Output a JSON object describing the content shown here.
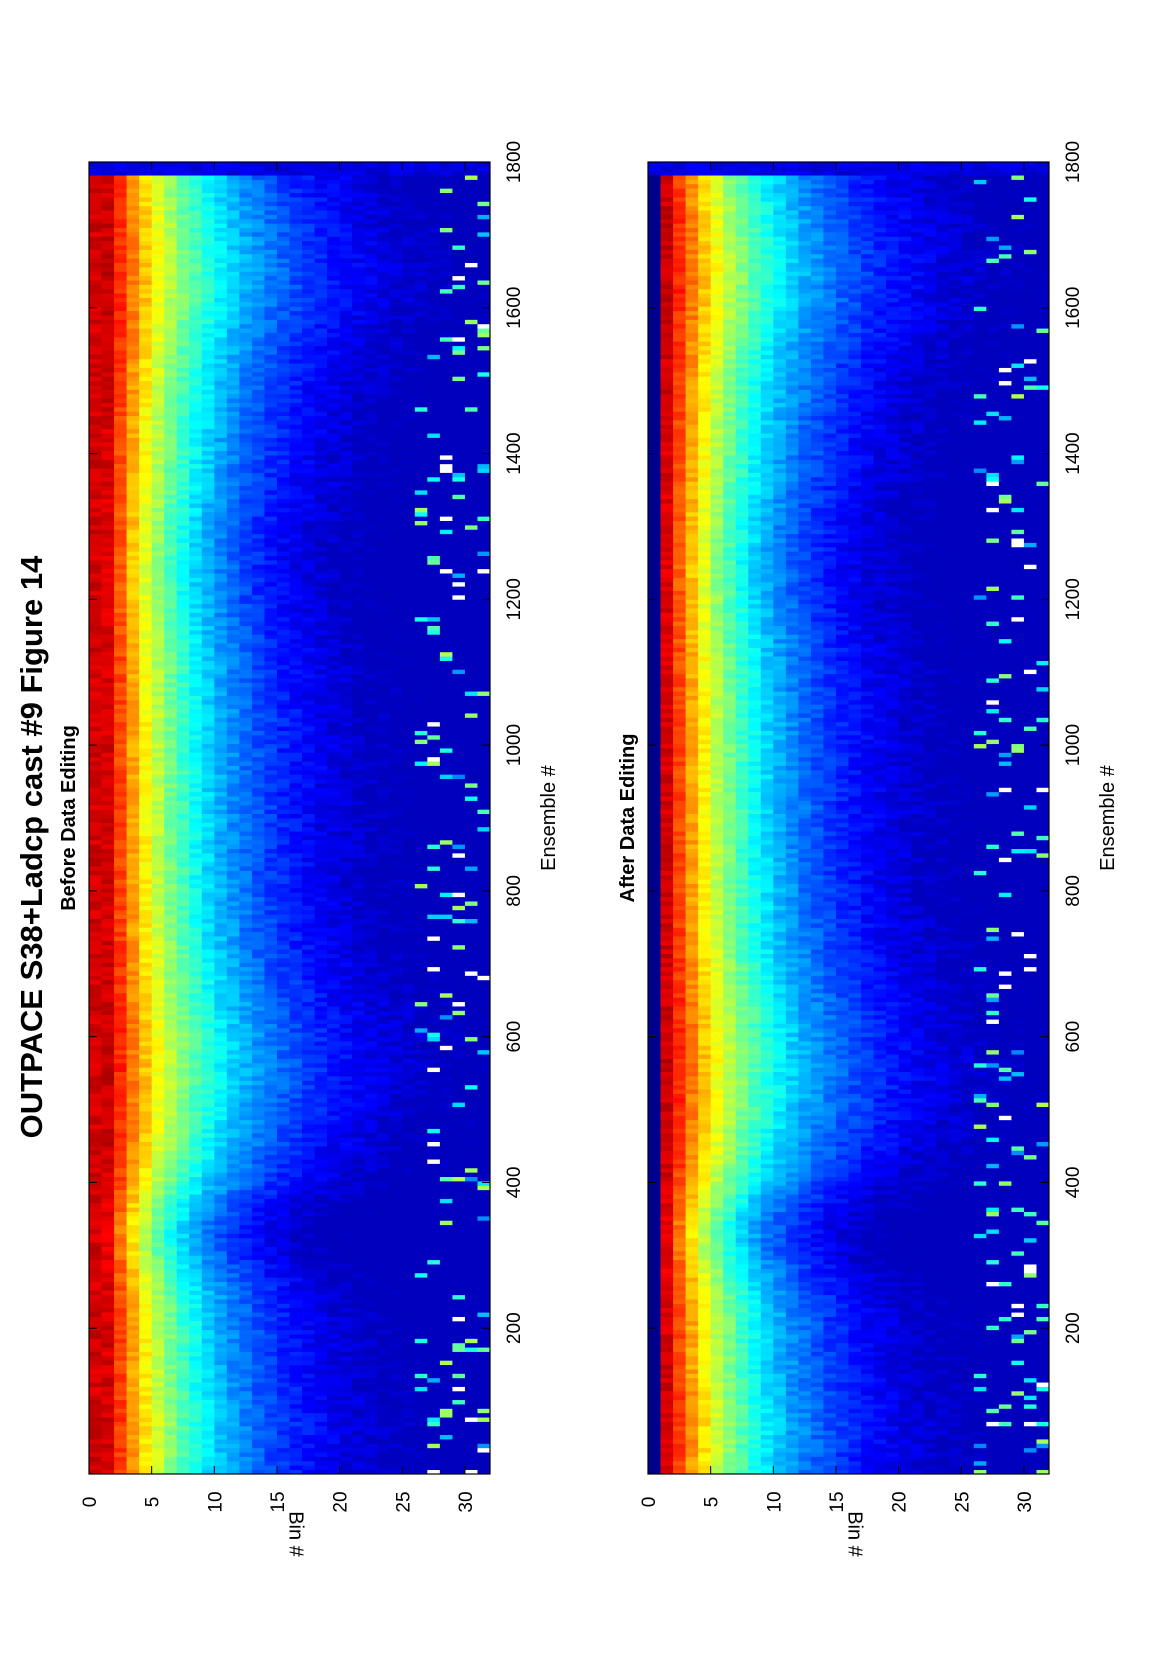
{
  "figure": {
    "title": "OUTPACE S38+Ladcp cast #9  Figure 14",
    "orientation": "rotated 90 degrees counter-clockwise"
  },
  "chart_data": [
    {
      "type": "heatmap",
      "title": "Before Data Editing",
      "xlabel": "Ensemble #",
      "ylabel": "Bin #",
      "xlim": [
        0,
        1800
      ],
      "ylim": [
        0,
        32
      ],
      "y_reversed": true,
      "xticks": [
        200,
        400,
        600,
        800,
        1000,
        1200,
        1400,
        1600,
        1800
      ],
      "yticks": [
        0,
        5,
        10,
        15,
        20,
        25,
        30
      ],
      "data_range_ensemble": [
        1,
        1780
      ],
      "colormap": "jet",
      "colorbar": "none",
      "colors": {
        "low": "#00008f",
        "mid": "#00ffff",
        "high": "#800000"
      },
      "trend": "High values at bins 1-3, decaying with bin number; signal reaches deeper bins near ensembles 500-600 and 1500-1780 and is weakest near ensembles 300-400 and 1250",
      "grid": false,
      "legend": "none"
    },
    {
      "type": "heatmap",
      "title": "After Data Editing",
      "xlabel": "Ensemble #",
      "ylabel": "Bin #",
      "xlim": [
        0,
        1800
      ],
      "ylim": [
        0,
        32
      ],
      "y_reversed": true,
      "xticks": [
        200,
        400,
        600,
        800,
        1000,
        1200,
        1400,
        1600,
        1800
      ],
      "yticks": [
        0,
        5,
        10,
        15,
        20,
        25,
        30
      ],
      "data_range_ensemble": [
        1,
        1780
      ],
      "colormap": "jet",
      "colorbar": "none",
      "colors": {
        "low": "#00008f",
        "mid": "#00ffff",
        "high": "#800000"
      },
      "trend": "Nearly identical to the unedited field; bin 0 is removed and a few outliers are cleaned",
      "grid": false,
      "legend": "none"
    }
  ]
}
